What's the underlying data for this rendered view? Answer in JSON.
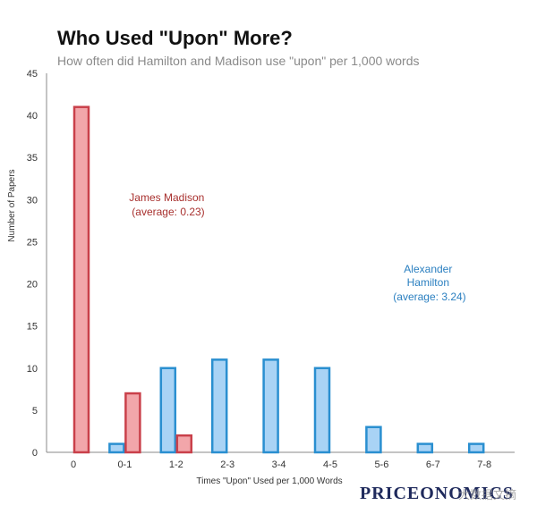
{
  "chart_data": {
    "type": "bar",
    "title": "Who Used \"Upon\" More?",
    "subtitle": "How often did Hamilton and Madison use \"upon\" per 1,000 words",
    "xlabel": "Times \"Upon\" Used per 1,000 Words",
    "ylabel": "Number of Papers",
    "categories": [
      "0",
      "0-1",
      "1-2",
      "2-3",
      "3-4",
      "4-5",
      "5-6",
      "6-7",
      "7-8"
    ],
    "series": [
      {
        "name": "Alexander Hamilton",
        "color": "#2a8fd0",
        "fill": "#a9d3f5",
        "values": [
          0,
          1,
          10,
          11,
          11,
          10,
          3,
          1,
          1
        ]
      },
      {
        "name": "James Madison",
        "color": "#c9404a",
        "fill": "#f2a6aa",
        "values": [
          41,
          7,
          2,
          0,
          0,
          0,
          0,
          0,
          0
        ]
      }
    ],
    "ylim": [
      0,
      45
    ],
    "yticks": [
      0,
      5,
      10,
      15,
      20,
      25,
      30,
      35,
      40,
      45
    ],
    "grid": false,
    "annotations": [
      {
        "series": "James Madison",
        "lines": [
          "James Madison",
          "(average: 0.23)"
        ],
        "color": "#a8302e"
      },
      {
        "series": "Alexander Hamilton",
        "lines": [
          "Alexander",
          "Hamilton",
          "(average: 3.24)"
        ],
        "color": "#2a7fc0"
      }
    ]
  },
  "brand": "PRICEONOMICS",
  "watermark": "大数据文摘"
}
